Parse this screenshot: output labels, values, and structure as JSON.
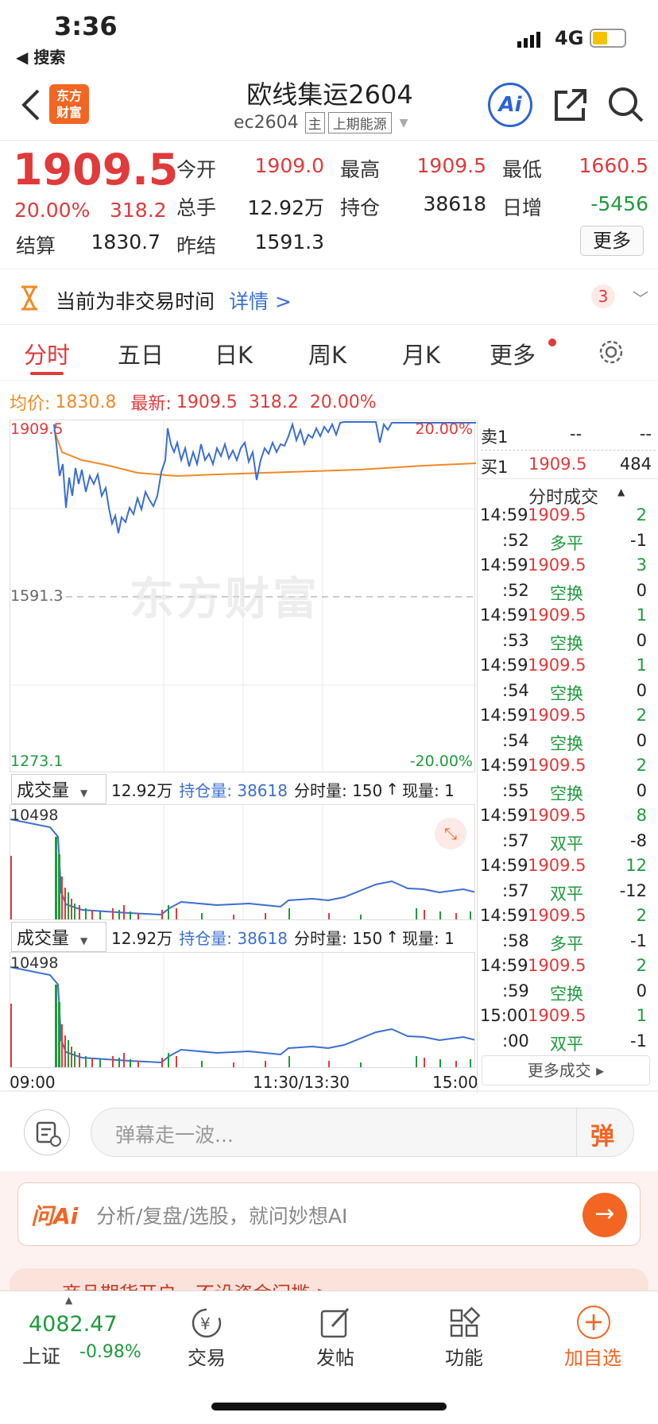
{
  "status": {
    "time": "3:36",
    "back_app": "◀ 搜索",
    "network": "4G"
  },
  "header": {
    "title": "欧线集运2604",
    "code": "ec2604",
    "badge_main": "主",
    "exchange": "上期能源"
  },
  "quote": {
    "price": "1909.5",
    "pct": "20.00%",
    "change": "318.2",
    "open_label": "今开",
    "open": "1909.0",
    "high_label": "最高",
    "high": "1909.5",
    "low_label": "最低",
    "low": "1660.5",
    "volume_label": "总手",
    "volume": "12.92万",
    "oi_label": "持仓",
    "oi": "38618",
    "oi_change_label": "日增",
    "oi_change": "-5456",
    "settle_label": "结算",
    "settle": "1830.7",
    "prev_settle_label": "昨结",
    "prev_settle": "1591.3",
    "more_label": "更多"
  },
  "notice": {
    "text": "当前为非交易时间",
    "link": "详情 >",
    "count": "3"
  },
  "tabs": [
    "分时",
    "五日",
    "日K",
    "周K",
    "月K",
    "更多"
  ],
  "chart_info": {
    "avg_label": "均价:",
    "avg": "1830.8",
    "latest_label": "最新:",
    "latest": "1909.5",
    "change": "318.2",
    "pct": "20.00%"
  },
  "chart_labels": {
    "top_price": "1909.5",
    "top_pct": "20.00%",
    "mid_price": "1591.3",
    "bottom_price": "1273.1",
    "bottom_pct": "-20.00%",
    "watermark": "东方财富",
    "time_start": "09:00",
    "time_mid": "11:30/13:30",
    "time_end": "15:00"
  },
  "volume_panel": {
    "selector": "成交量",
    "volume": "12.92万",
    "oi_text": "持仓量: 38618",
    "minute_vol": "分时量: 150",
    "current": "现量: 1",
    "max_label": "10498"
  },
  "orderbook": {
    "ask_label": "卖1",
    "ask_price": "--",
    "ask_vol": "--",
    "bid_label": "买1",
    "bid_price": "1909.5",
    "bid_vol": "484",
    "trades_title": "分时成交",
    "more_trades": "更多成交"
  },
  "trades": [
    {
      "t": "14:59",
      "p": "1909.5",
      "v": "2"
    },
    {
      "t": ":52",
      "p": "多平",
      "v": "-1"
    },
    {
      "t": "14:59",
      "p": "1909.5",
      "v": "3"
    },
    {
      "t": ":52",
      "p": "空换",
      "v": "0"
    },
    {
      "t": "14:59",
      "p": "1909.5",
      "v": "1"
    },
    {
      "t": ":53",
      "p": "空换",
      "v": "0"
    },
    {
      "t": "14:59",
      "p": "1909.5",
      "v": "1"
    },
    {
      "t": ":54",
      "p": "空换",
      "v": "0"
    },
    {
      "t": "14:59",
      "p": "1909.5",
      "v": "2"
    },
    {
      "t": ":54",
      "p": "空换",
      "v": "0"
    },
    {
      "t": "14:59",
      "p": "1909.5",
      "v": "2"
    },
    {
      "t": ":55",
      "p": "空换",
      "v": "0"
    },
    {
      "t": "14:59",
      "p": "1909.5",
      "v": "8"
    },
    {
      "t": ":57",
      "p": "双平",
      "v": "-8"
    },
    {
      "t": "14:59",
      "p": "1909.5",
      "v": "12"
    },
    {
      "t": ":57",
      "p": "双平",
      "v": "-12"
    },
    {
      "t": "14:59",
      "p": "1909.5",
      "v": "2"
    },
    {
      "t": ":58",
      "p": "多平",
      "v": "-1"
    },
    {
      "t": "14:59",
      "p": "1909.5",
      "v": "2"
    },
    {
      "t": ":59",
      "p": "空换",
      "v": "0"
    },
    {
      "t": "15:00",
      "p": "1909.5",
      "v": "1"
    },
    {
      "t": ":00",
      "p": "双平",
      "v": "-1"
    }
  ],
  "comment": {
    "placeholder": "弹幕走一波...",
    "send": "弹"
  },
  "ai": {
    "logo": "问Ai",
    "placeholder": "分析/复盘/选股，就问妙想AI"
  },
  "promo": {
    "text": "商品期货开户，不设资金门槛 >"
  },
  "bottom_nav": {
    "index_value": "4082.47",
    "index_name": "上证",
    "index_pct": "-0.98%",
    "trade": "交易",
    "post": "发帖",
    "func": "功能",
    "add": "加自选"
  },
  "colors": {
    "up": "#e03a3a",
    "down": "#1f9a3c",
    "price_line": "#3b6fd1",
    "avg_line": "#f08a24",
    "accent": "#f26522"
  }
}
